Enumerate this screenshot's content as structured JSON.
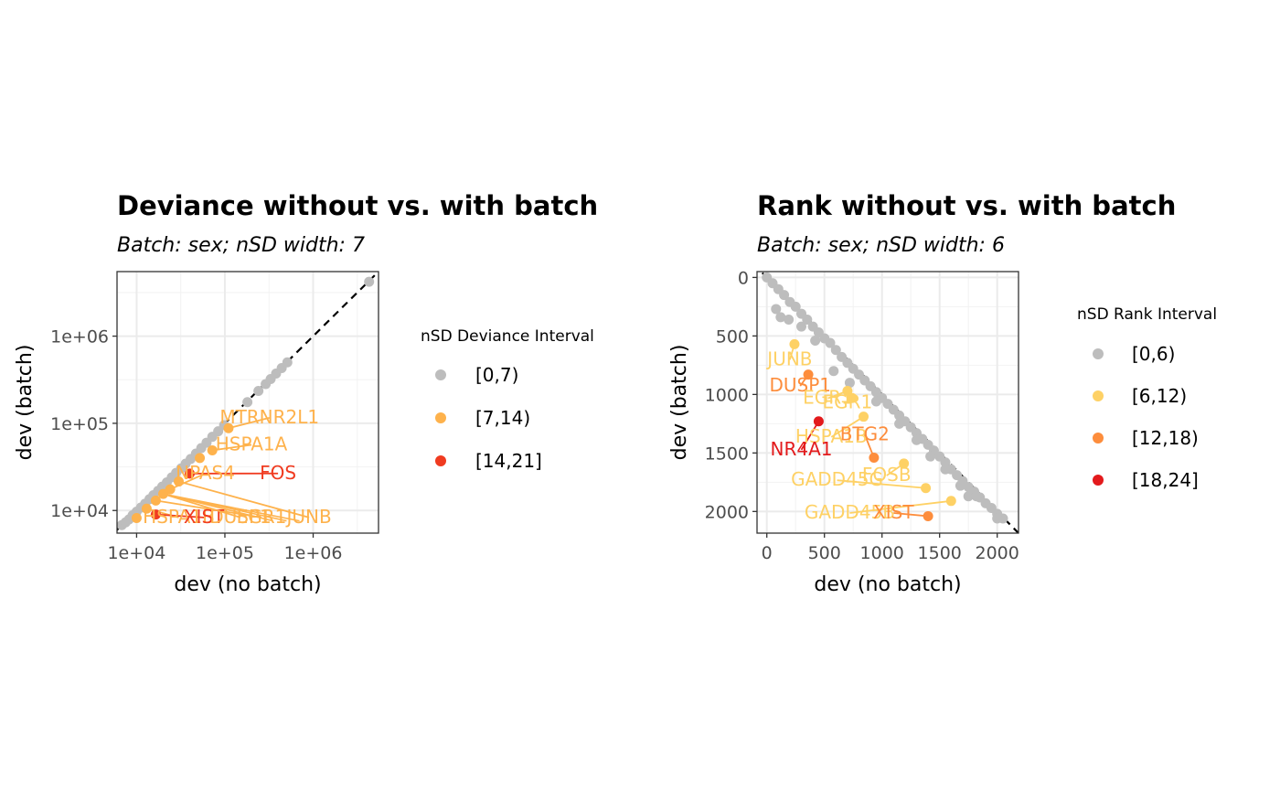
{
  "chart_data": [
    {
      "type": "scatter",
      "title": "Deviance without vs. with batch",
      "subtitle": "Batch: sex; nSD width: 7",
      "xlabel": "dev (no batch)",
      "ylabel": "dev (batch)",
      "scale": "log10",
      "xlim": [
        6000,
        5500000
      ],
      "ylim": [
        5500,
        5500000
      ],
      "xticks": [
        {
          "value": 10000,
          "label": "1e+04"
        },
        {
          "value": 100000,
          "label": "1e+05"
        },
        {
          "value": 1000000,
          "label": "1e+06"
        }
      ],
      "yticks": [
        {
          "value": 10000,
          "label": "1e+04"
        },
        {
          "value": 100000,
          "label": "1e+05"
        },
        {
          "value": 1000000,
          "label": "1e+06"
        }
      ],
      "grid": true,
      "reference_line": "y = x (dashed)",
      "legend": {
        "title": "nSD Deviance Interval",
        "position": "right",
        "entries": [
          {
            "label": "[0,7)",
            "color": "#bdbdbd"
          },
          {
            "label": "[7,14)",
            "color": "#feb24c"
          },
          {
            "label": "[14,21]",
            "color": "#f03b20"
          }
        ]
      },
      "points": [
        {
          "x": 6800,
          "y": 6800,
          "group": 0
        },
        {
          "x": 7500,
          "y": 7300,
          "group": 0
        },
        {
          "x": 8200,
          "y": 7900,
          "group": 0
        },
        {
          "x": 9000,
          "y": 8800,
          "group": 0
        },
        {
          "x": 10000,
          "y": 9700,
          "group": 0
        },
        {
          "x": 11200,
          "y": 10800,
          "group": 0
        },
        {
          "x": 12500,
          "y": 12000,
          "group": 0
        },
        {
          "x": 14000,
          "y": 13500,
          "group": 0
        },
        {
          "x": 15500,
          "y": 15000,
          "group": 0
        },
        {
          "x": 17500,
          "y": 16800,
          "group": 0
        },
        {
          "x": 19500,
          "y": 18800,
          "group": 0
        },
        {
          "x": 22000,
          "y": 21000,
          "group": 0
        },
        {
          "x": 25000,
          "y": 24000,
          "group": 0
        },
        {
          "x": 28000,
          "y": 27000,
          "group": 0
        },
        {
          "x": 32000,
          "y": 30500,
          "group": 0
        },
        {
          "x": 36000,
          "y": 34500,
          "group": 0
        },
        {
          "x": 41000,
          "y": 39000,
          "group": 0
        },
        {
          "x": 47000,
          "y": 45000,
          "group": 0
        },
        {
          "x": 54000,
          "y": 52000,
          "group": 0
        },
        {
          "x": 62000,
          "y": 60000,
          "group": 0
        },
        {
          "x": 72000,
          "y": 70000,
          "group": 0
        },
        {
          "x": 84000,
          "y": 81000,
          "group": 0
        },
        {
          "x": 98000,
          "y": 95000,
          "group": 0
        },
        {
          "x": 180000,
          "y": 175000,
          "group": 0
        },
        {
          "x": 240000,
          "y": 235000,
          "group": 0
        },
        {
          "x": 290000,
          "y": 282000,
          "group": 0
        },
        {
          "x": 330000,
          "y": 322000,
          "group": 0
        },
        {
          "x": 380000,
          "y": 372000,
          "group": 0
        },
        {
          "x": 440000,
          "y": 430000,
          "group": 0
        },
        {
          "x": 510000,
          "y": 500000,
          "group": 0
        },
        {
          "x": 4300000,
          "y": 4200000,
          "group": 0
        },
        {
          "x": 10000,
          "y": 8200,
          "group": 1
        },
        {
          "x": 13000,
          "y": 10500,
          "group": 1
        },
        {
          "x": 16500,
          "y": 13000,
          "group": 1
        },
        {
          "x": 20000,
          "y": 15500,
          "group": 1
        },
        {
          "x": 24000,
          "y": 17500,
          "group": 1
        },
        {
          "x": 30000,
          "y": 21500,
          "group": 1
        },
        {
          "x": 52000,
          "y": 40000,
          "group": 1
        },
        {
          "x": 72000,
          "y": 49000,
          "group": 1
        },
        {
          "x": 110000,
          "y": 88000,
          "group": 1
        },
        {
          "x": 16500,
          "y": 9000,
          "group": 2
        },
        {
          "x": 40000,
          "y": 26500,
          "group": 2
        }
      ],
      "labels": [
        {
          "text": "MTRNR2L1",
          "group": 1,
          "point": [
            110000,
            88000
          ],
          "at": [
            320000,
            100000
          ]
        },
        {
          "text": "HSPA1A",
          "group": 1,
          "point": [
            72000,
            49000
          ],
          "at": [
            200000,
            49000
          ]
        },
        {
          "text": "NPAS4",
          "group": 1,
          "point": [
            24000,
            17500
          ],
          "at": [
            60000,
            23000
          ]
        },
        {
          "text": "FOS",
          "group": 2,
          "point": [
            40000,
            26500
          ],
          "at": [
            400000,
            23000
          ]
        },
        {
          "text": "HSPA1B",
          "group": 1,
          "point": [
            13000,
            10500
          ],
          "at": [
            30000,
            7200
          ]
        },
        {
          "text": "XIST",
          "group": 2,
          "point": [
            16500,
            9000
          ],
          "at": [
            58000,
            7200
          ]
        },
        {
          "text": "DUSP1",
          "group": 1,
          "point": [
            20000,
            15500
          ],
          "at": [
            150000,
            7200
          ]
        },
        {
          "text": "EGR1",
          "group": 1,
          "point": [
            16500,
            13000
          ],
          "at": [
            260000,
            7200
          ]
        },
        {
          "text": "JUNB",
          "group": 1,
          "point": [
            30000,
            21500
          ],
          "at": [
            900000,
            7200
          ]
        }
      ],
      "extra_segments_to": [
        [
          350000,
          7600
        ],
        [
          500000,
          7600
        ],
        [
          700000,
          7600
        ]
      ]
    },
    {
      "type": "scatter",
      "title": "Rank without vs. with batch",
      "subtitle": "Batch: sex; nSD width: 6",
      "xlabel": "dev (no batch)",
      "ylabel": "dev (batch)",
      "scale": "linear",
      "y_reversed": true,
      "xlim": [
        -85,
        2185
      ],
      "ylim": [
        2185,
        -50
      ],
      "xticks": [
        {
          "value": 0,
          "label": "0"
        },
        {
          "value": 500,
          "label": "500"
        },
        {
          "value": 1000,
          "label": "1000"
        },
        {
          "value": 1500,
          "label": "1500"
        },
        {
          "value": 2000,
          "label": "2000"
        }
      ],
      "yticks": [
        {
          "value": 0,
          "label": "0"
        },
        {
          "value": 500,
          "label": "500"
        },
        {
          "value": 1000,
          "label": "1000"
        },
        {
          "value": 1500,
          "label": "1500"
        },
        {
          "value": 2000,
          "label": "2000"
        }
      ],
      "grid": true,
      "reference_line": "y = x (dashed)",
      "legend": {
        "title": "nSD Rank Interval",
        "position": "right",
        "entries": [
          {
            "label": "[0,6)",
            "color": "#bdbdbd"
          },
          {
            "label": "[6,12)",
            "color": "#fed165"
          },
          {
            "label": "[12,18)",
            "color": "#fd8d3c"
          },
          {
            "label": "[18,24]",
            "color": "#e31a1c"
          }
        ]
      },
      "points": [
        {
          "x": 0,
          "y": 0,
          "group": 0
        },
        {
          "x": 50,
          "y": 50,
          "group": 0
        },
        {
          "x": 100,
          "y": 100,
          "group": 0
        },
        {
          "x": 150,
          "y": 150,
          "group": 0
        },
        {
          "x": 200,
          "y": 210,
          "group": 0
        },
        {
          "x": 250,
          "y": 250,
          "group": 0
        },
        {
          "x": 300,
          "y": 310,
          "group": 0
        },
        {
          "x": 350,
          "y": 360,
          "group": 0
        },
        {
          "x": 400,
          "y": 420,
          "group": 0
        },
        {
          "x": 450,
          "y": 470,
          "group": 0
        },
        {
          "x": 500,
          "y": 520,
          "group": 0
        },
        {
          "x": 550,
          "y": 560,
          "group": 0
        },
        {
          "x": 600,
          "y": 620,
          "group": 0
        },
        {
          "x": 650,
          "y": 680,
          "group": 0
        },
        {
          "x": 700,
          "y": 730,
          "group": 0
        },
        {
          "x": 750,
          "y": 780,
          "group": 0
        },
        {
          "x": 800,
          "y": 830,
          "group": 0
        },
        {
          "x": 850,
          "y": 880,
          "group": 0
        },
        {
          "x": 900,
          "y": 930,
          "group": 0
        },
        {
          "x": 950,
          "y": 980,
          "group": 0
        },
        {
          "x": 1000,
          "y": 1030,
          "group": 0
        },
        {
          "x": 1050,
          "y": 1080,
          "group": 0
        },
        {
          "x": 1100,
          "y": 1130,
          "group": 0
        },
        {
          "x": 1150,
          "y": 1180,
          "group": 0
        },
        {
          "x": 1200,
          "y": 1230,
          "group": 0
        },
        {
          "x": 1250,
          "y": 1280,
          "group": 0
        },
        {
          "x": 1300,
          "y": 1330,
          "group": 0
        },
        {
          "x": 1350,
          "y": 1380,
          "group": 0
        },
        {
          "x": 1400,
          "y": 1430,
          "group": 0
        },
        {
          "x": 1450,
          "y": 1480,
          "group": 0
        },
        {
          "x": 1500,
          "y": 1530,
          "group": 0
        },
        {
          "x": 1550,
          "y": 1580,
          "group": 0
        },
        {
          "x": 1600,
          "y": 1640,
          "group": 0
        },
        {
          "x": 1650,
          "y": 1690,
          "group": 0
        },
        {
          "x": 1700,
          "y": 1740,
          "group": 0
        },
        {
          "x": 1750,
          "y": 1790,
          "group": 0
        },
        {
          "x": 1800,
          "y": 1830,
          "group": 0
        },
        {
          "x": 1850,
          "y": 1880,
          "group": 0
        },
        {
          "x": 1900,
          "y": 1930,
          "group": 0
        },
        {
          "x": 1950,
          "y": 1970,
          "group": 0
        },
        {
          "x": 2000,
          "y": 2020,
          "group": 0
        },
        {
          "x": 2050,
          "y": 2060,
          "group": 0
        },
        {
          "x": 80,
          "y": 270,
          "group": 0
        },
        {
          "x": 120,
          "y": 340,
          "group": 0
        },
        {
          "x": 190,
          "y": 360,
          "group": 0
        },
        {
          "x": 300,
          "y": 420,
          "group": 0
        },
        {
          "x": 420,
          "y": 540,
          "group": 0
        },
        {
          "x": 580,
          "y": 800,
          "group": 0
        },
        {
          "x": 720,
          "y": 900,
          "group": 0
        },
        {
          "x": 950,
          "y": 1060,
          "group": 0
        },
        {
          "x": 1150,
          "y": 1250,
          "group": 0
        },
        {
          "x": 1300,
          "y": 1390,
          "group": 0
        },
        {
          "x": 1420,
          "y": 1530,
          "group": 0
        },
        {
          "x": 1550,
          "y": 1640,
          "group": 0
        },
        {
          "x": 1680,
          "y": 1780,
          "group": 0
        },
        {
          "x": 1750,
          "y": 1870,
          "group": 0
        },
        {
          "x": 1820,
          "y": 1870,
          "group": 0
        },
        {
          "x": 2000,
          "y": 2060,
          "group": 0
        },
        {
          "x": 240,
          "y": 570,
          "group": 1
        },
        {
          "x": 700,
          "y": 970,
          "group": 1
        },
        {
          "x": 740,
          "y": 1030,
          "group": 1
        },
        {
          "x": 840,
          "y": 1190,
          "group": 1
        },
        {
          "x": 1190,
          "y": 1590,
          "group": 1
        },
        {
          "x": 1380,
          "y": 1800,
          "group": 1
        },
        {
          "x": 1600,
          "y": 1910,
          "group": 1
        },
        {
          "x": 360,
          "y": 830,
          "group": 2
        },
        {
          "x": 930,
          "y": 1540,
          "group": 2
        },
        {
          "x": 1400,
          "y": 2040,
          "group": 2
        },
        {
          "x": 450,
          "y": 1230,
          "group": 3
        }
      ],
      "labels": [
        {
          "text": "JUNB",
          "group": 1,
          "point": [
            240,
            570
          ],
          "at": [
            200,
            750
          ]
        },
        {
          "text": "DUSP1",
          "group": 2,
          "point": [
            360,
            830
          ],
          "at": [
            290,
            975
          ]
        },
        {
          "text": "EGR1",
          "group": 1,
          "point": [
            700,
            970
          ],
          "at": [
            530,
            1080
          ]
        },
        {
          "text": "EGR1",
          "group": 1,
          "point": [
            740,
            1030
          ],
          "at": [
            700,
            1120
          ]
        },
        {
          "text": "HSPA1B",
          "group": 1,
          "point": [
            840,
            1190
          ],
          "at": [
            560,
            1410
          ]
        },
        {
          "text": "BTG2",
          "group": 2,
          "point": [
            930,
            1540
          ],
          "at": [
            850,
            1390
          ]
        },
        {
          "text": "NR4A1",
          "group": 3,
          "point": [
            450,
            1230
          ],
          "at": [
            300,
            1520
          ]
        },
        {
          "text": "FOSB",
          "group": 1,
          "point": [
            1190,
            1590
          ],
          "at": [
            1040,
            1740
          ]
        },
        {
          "text": "GADD45G",
          "group": 1,
          "point": [
            1380,
            1800
          ],
          "at": [
            610,
            1780
          ]
        },
        {
          "text": "GADD45B",
          "group": 1,
          "point": [
            1600,
            1910
          ],
          "at": [
            720,
            2060
          ]
        },
        {
          "text": "XIST",
          "group": 2,
          "point": [
            1400,
            2040
          ],
          "at": [
            1100,
            2060
          ]
        }
      ]
    }
  ]
}
